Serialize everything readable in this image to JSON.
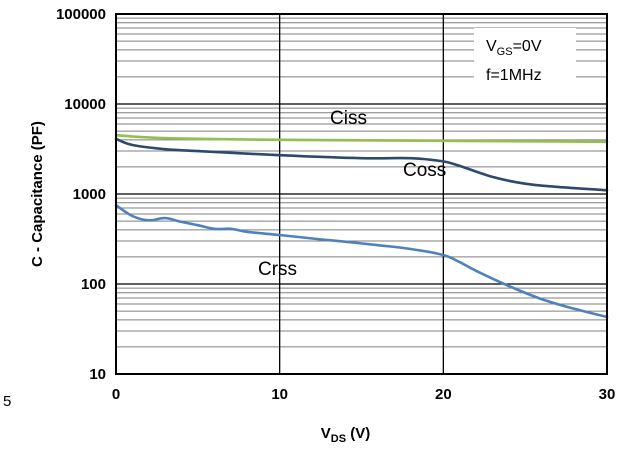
{
  "chart_data": {
    "type": "line",
    "title": "",
    "xlabel": {
      "main": "V",
      "sub": "DS",
      "suffix": " (V)"
    },
    "ylabel": "C - Capacitance (PF)",
    "xlim": [
      0,
      30
    ],
    "ylim": [
      10,
      100000
    ],
    "yscale": "log",
    "grid": true,
    "x_ticks": [
      0,
      10,
      20,
      30
    ],
    "x_tick_labels": [
      "0",
      "10",
      "20",
      "30"
    ],
    "y_ticks": [
      10,
      100,
      1000,
      10000,
      100000
    ],
    "y_tick_labels": [
      "10",
      "100",
      "1000",
      "10000",
      "100000"
    ],
    "stray_label": "5",
    "conditions": {
      "line1_main": "V",
      "line1_sub": "GS",
      "line1_suffix": "=0V",
      "line2": "f=1MHz"
    },
    "series": [
      {
        "name": "Ciss",
        "color": "#92c050",
        "x": [
          0,
          2,
          5,
          10,
          15,
          20,
          25,
          30
        ],
        "y": [
          4500,
          4250,
          4100,
          4000,
          3950,
          3900,
          3850,
          3800
        ]
      },
      {
        "name": "Coss",
        "color": "#2e4a6b",
        "x": [
          0,
          1,
          3,
          5,
          10,
          15,
          18,
          20,
          21,
          23,
          25,
          27,
          30
        ],
        "y": [
          4100,
          3500,
          3150,
          3000,
          2700,
          2500,
          2500,
          2300,
          2050,
          1550,
          1300,
          1200,
          1100
        ]
      },
      {
        "name": "Crss",
        "color": "#4f81bd",
        "x": [
          0,
          1,
          2,
          3,
          4,
          5,
          6,
          7,
          8,
          10,
          12,
          14,
          16,
          18,
          20,
          21,
          22,
          24,
          26,
          28,
          30
        ],
        "y": [
          750,
          570,
          510,
          540,
          490,
          450,
          410,
          410,
          380,
          350,
          320,
          295,
          270,
          245,
          210,
          175,
          140,
          95,
          68,
          53,
          43
        ]
      }
    ]
  }
}
